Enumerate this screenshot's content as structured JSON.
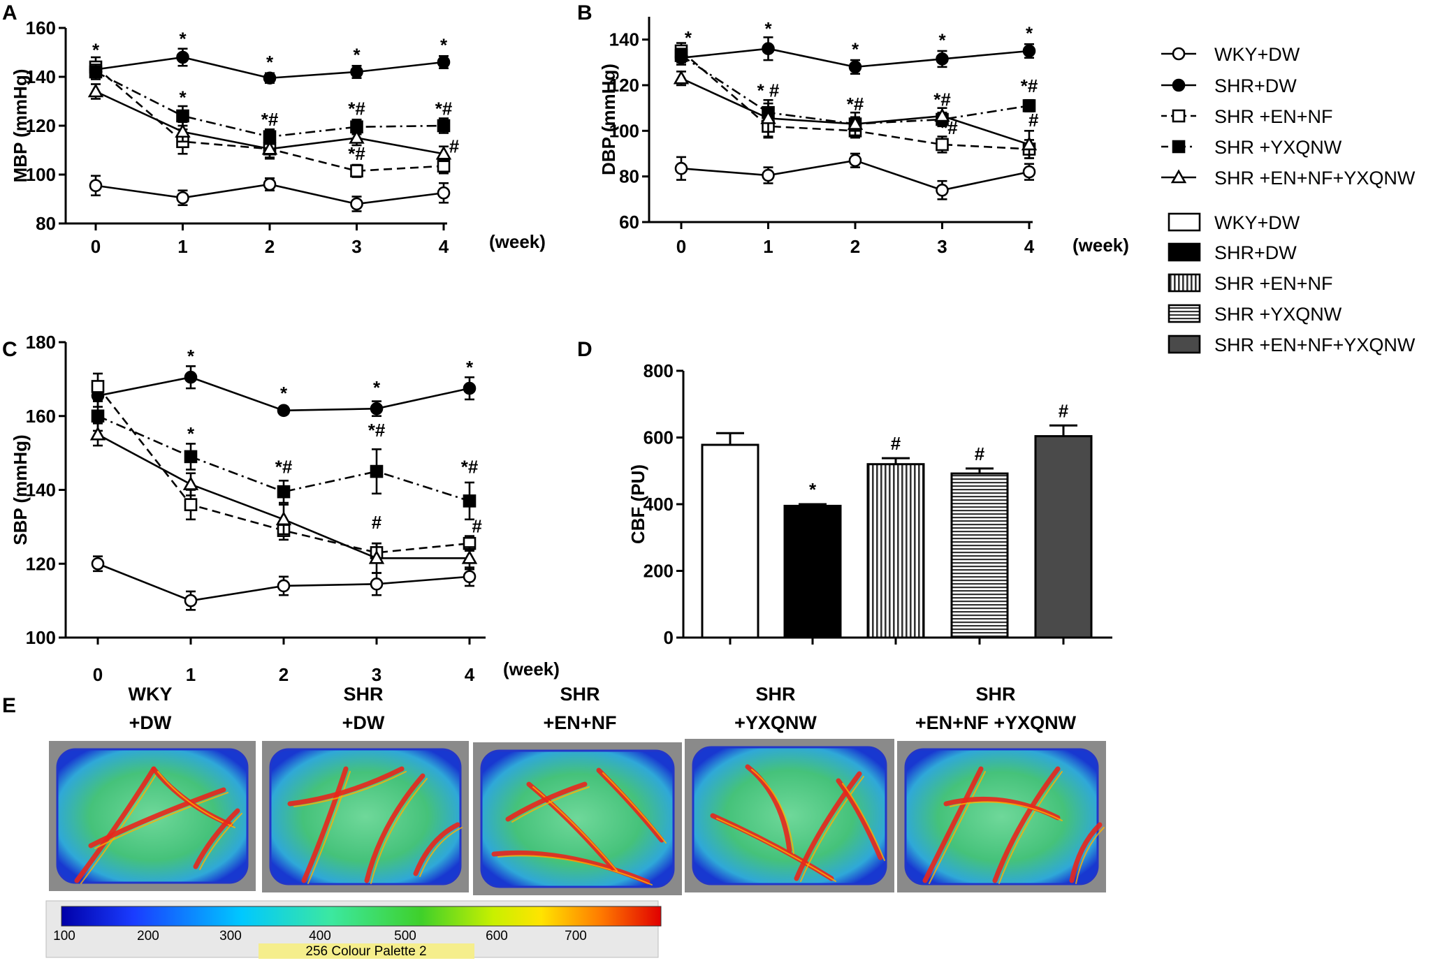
{
  "chart_data": [
    {
      "id": "A",
      "panel_label": "A",
      "type": "line",
      "ylabel": "MBP (mmHg)",
      "xlabel": "(week)",
      "x": [
        0,
        1,
        2,
        3,
        4
      ],
      "x_tick_labels": [
        "0",
        "1",
        "2",
        "3",
        "4"
      ],
      "ylim": [
        80,
        160
      ],
      "y_ticks": [
        80,
        100,
        120,
        140,
        160
      ],
      "series": [
        {
          "name": "WKY+DW",
          "values": [
            95.5,
            90.5,
            96,
            88,
            92.5
          ],
          "errors": [
            4,
            3,
            2.5,
            3,
            4
          ],
          "marker": "circle-open",
          "dash": "solid"
        },
        {
          "name": "SHR+DW",
          "values": [
            143,
            148,
            139.5,
            142,
            146
          ],
          "errors": [
            3,
            3.5,
            2,
            2.5,
            2.5
          ],
          "marker": "circle-filled",
          "dash": "solid"
        },
        {
          "name": "SHR +EN+NF",
          "values": [
            144,
            113.5,
            110.5,
            101.5,
            103.5
          ],
          "errors": [
            4,
            5,
            4,
            2.5,
            3
          ],
          "marker": "square-open",
          "dash": "dashed"
        },
        {
          "name": "SHR +YXQNW",
          "values": [
            142,
            124,
            115.5,
            119.5,
            120
          ],
          "errors": [
            3,
            4,
            3,
            3,
            3
          ],
          "marker": "square-filled",
          "dash": "dashdot"
        },
        {
          "name": "SHR +EN+NF+YXQNW",
          "values": [
            134,
            117.5,
            110.5,
            115,
            108.5
          ],
          "errors": [
            3,
            4,
            3.5,
            3,
            3
          ],
          "marker": "triangle-open",
          "dash": "solid"
        }
      ],
      "annotations": [
        {
          "x": 0,
          "y": 148.5,
          "text": "*"
        },
        {
          "x": 1,
          "y": 153,
          "text": "*"
        },
        {
          "x": 2,
          "y": 143.5,
          "text": "*"
        },
        {
          "x": 3,
          "y": 146.5,
          "text": "*"
        },
        {
          "x": 4,
          "y": 150.5,
          "text": "*"
        },
        {
          "x": 1,
          "y": 129,
          "text": "*"
        },
        {
          "x": 2,
          "y": 120,
          "text": "*#"
        },
        {
          "x": 3,
          "y": 124.5,
          "text": "*#"
        },
        {
          "x": 4,
          "y": 124.5,
          "text": "*#"
        },
        {
          "x": 3,
          "y": 106,
          "text": "*#"
        },
        {
          "x": 4.12,
          "y": 109,
          "text": "#"
        }
      ]
    },
    {
      "id": "B",
      "panel_label": "B",
      "type": "line",
      "ylabel": "DBP (mmHg)",
      "xlabel": "(week)",
      "x": [
        0,
        1,
        2,
        3,
        4
      ],
      "x_tick_labels": [
        "0",
        "1",
        "2",
        "3",
        "4"
      ],
      "ylim": [
        60,
        150
      ],
      "y_ticks": [
        60,
        80,
        100,
        120,
        140
      ],
      "series": [
        {
          "name": "WKY+DW",
          "values": [
            83.5,
            80.5,
            87,
            74,
            82
          ],
          "errors": [
            5,
            3.5,
            3,
            4,
            3.5
          ],
          "marker": "circle-open",
          "dash": "solid"
        },
        {
          "name": "SHR+DW",
          "values": [
            132,
            136,
            128,
            131.5,
            135
          ],
          "errors": [
            3,
            5,
            3,
            3.5,
            3
          ],
          "marker": "circle-filled",
          "dash": "solid"
        },
        {
          "name": "SHR +EN+NF",
          "values": [
            135,
            102,
            100,
            94,
            92
          ],
          "errors": [
            3.5,
            5,
            3,
            3.5,
            4
          ],
          "marker": "square-open",
          "dash": "dashed"
        },
        {
          "name": "SHR +YXQNW",
          "values": [
            133,
            108,
            103,
            105,
            111
          ],
          "errors": [
            3,
            4,
            5,
            3,
            2.5
          ],
          "marker": "square-filled",
          "dash": "dashdot"
        },
        {
          "name": "SHR +EN+NF+YXQNW",
          "values": [
            123,
            105.5,
            103,
            106.5,
            94
          ],
          "errors": [
            3,
            8,
            3,
            3.5,
            6
          ],
          "marker": "triangle-open",
          "dash": "solid"
        }
      ],
      "annotations": [
        {
          "x": 0.08,
          "y": 138,
          "text": "*"
        },
        {
          "x": 1,
          "y": 142,
          "text": "*"
        },
        {
          "x": 2,
          "y": 133,
          "text": "*"
        },
        {
          "x": 3,
          "y": 137,
          "text": "*"
        },
        {
          "x": 4,
          "y": 140,
          "text": "*"
        },
        {
          "x": 1,
          "y": 115,
          "text": "* #"
        },
        {
          "x": 2,
          "y": 109,
          "text": "*#"
        },
        {
          "x": 3,
          "y": 111,
          "text": "*#"
        },
        {
          "x": 4,
          "y": 117,
          "text": "*#"
        },
        {
          "x": 3.08,
          "y": 98.5,
          "text": "*#"
        },
        {
          "x": 4.05,
          "y": 102,
          "text": "#"
        }
      ]
    },
    {
      "id": "C",
      "panel_label": "C",
      "type": "line",
      "ylabel": "SBP (mmHg)",
      "xlabel": "(week)",
      "x": [
        0,
        1,
        2,
        3,
        4
      ],
      "x_tick_labels": [
        "0",
        "1",
        "2",
        "3",
        "4"
      ],
      "ylim": [
        100,
        180
      ],
      "y_ticks": [
        100,
        120,
        140,
        160,
        180
      ],
      "series": [
        {
          "name": "WKY+DW",
          "values": [
            120,
            110,
            114,
            114.5,
            116.5
          ],
          "errors": [
            2,
            2.5,
            2.5,
            3,
            2.5
          ],
          "marker": "circle-open",
          "dash": "solid"
        },
        {
          "name": "SHR+DW",
          "values": [
            165.5,
            170.5,
            161.5,
            162,
            167.5
          ],
          "errors": [
            3,
            3,
            1,
            2,
            3
          ],
          "marker": "circle-filled",
          "dash": "solid"
        },
        {
          "name": "SHR +EN+NF",
          "values": [
            168,
            136,
            129,
            123,
            125.5
          ],
          "errors": [
            3.5,
            4,
            2.5,
            2.5,
            2
          ],
          "marker": "square-open",
          "dash": "dashed"
        },
        {
          "name": "SHR +YXQNW",
          "values": [
            160,
            149,
            139.5,
            145,
            137
          ],
          "errors": [
            4,
            3.5,
            3,
            6,
            5
          ],
          "marker": "square-filled",
          "dash": "dashdot"
        },
        {
          "name": "SHR +EN+NF+YXQNW",
          "values": [
            155,
            141.5,
            132,
            121.5,
            121.5
          ],
          "errors": [
            3,
            3,
            4,
            4,
            3
          ],
          "marker": "triangle-open",
          "dash": "solid"
        }
      ],
      "annotations": [
        {
          "x": 1,
          "y": 174.5,
          "text": "*"
        },
        {
          "x": 2,
          "y": 164.5,
          "text": "*"
        },
        {
          "x": 3,
          "y": 166,
          "text": "*"
        },
        {
          "x": 4,
          "y": 171.5,
          "text": "*"
        },
        {
          "x": 1,
          "y": 153.5,
          "text": "*"
        },
        {
          "x": 2,
          "y": 144.5,
          "text": "*#"
        },
        {
          "x": 3,
          "y": 154.5,
          "text": "*#"
        },
        {
          "x": 4,
          "y": 144.5,
          "text": "*#"
        },
        {
          "x": 3,
          "y": 129.5,
          "text": "#"
        },
        {
          "x": 4.08,
          "y": 128.5,
          "text": "#"
        }
      ]
    },
    {
      "id": "D",
      "panel_label": "D",
      "type": "bar",
      "ylabel": "CBF (PU)",
      "xlabel": "",
      "ylim": [
        0,
        800
      ],
      "y_ticks": [
        0,
        200,
        400,
        600,
        800
      ],
      "categories": [
        "WKY+DW",
        "SHR+DW",
        "SHR +EN+NF",
        "SHR +YXQNW",
        "SHR +EN+NF+YXQNW"
      ],
      "values": [
        578,
        395,
        520,
        492,
        604
      ],
      "errors": [
        35,
        5,
        18,
        15,
        32
      ],
      "fills": [
        "white",
        "black",
        "vertical-stripes",
        "horizontal-stripes",
        "#4a4a4a"
      ],
      "bar_marks": [
        "",
        "*",
        "#",
        "#",
        "#"
      ]
    }
  ],
  "legend": {
    "line_entries": [
      "WKY+DW",
      "SHR+DW",
      "SHR +EN+NF",
      "SHR +YXQNW",
      "SHR +EN+NF+YXQNW"
    ],
    "bar_entries": [
      "WKY+DW",
      "SHR+DW",
      "SHR +EN+NF",
      "SHR +YXQNW",
      "SHR +EN+NF+YXQNW"
    ]
  },
  "panel_e": {
    "label": "E",
    "groups": [
      {
        "line1": "WKY",
        "line2": "+DW"
      },
      {
        "line1": "SHR",
        "line2": "+DW"
      },
      {
        "line1": "SHR",
        "line2": "+EN+NF"
      },
      {
        "line1": "SHR",
        "line2": "+YXQNW"
      },
      {
        "line1": "SHR",
        "line2": "+EN+NF +YXQNW"
      }
    ],
    "colorbar_ticks": [
      "100",
      "200",
      "300",
      "400",
      "500",
      "600",
      "700"
    ],
    "palette_caption": "256 Colour Palette 2"
  },
  "colors": {
    "text": "#000000",
    "axis": "#000000",
    "bar_dark": "#4a4a4a",
    "image_frame": "#8a8a8a",
    "flux_base": "#35c06a",
    "flux_vessel": "#e8261c",
    "palette_label_bg": "#f5ee8c"
  }
}
